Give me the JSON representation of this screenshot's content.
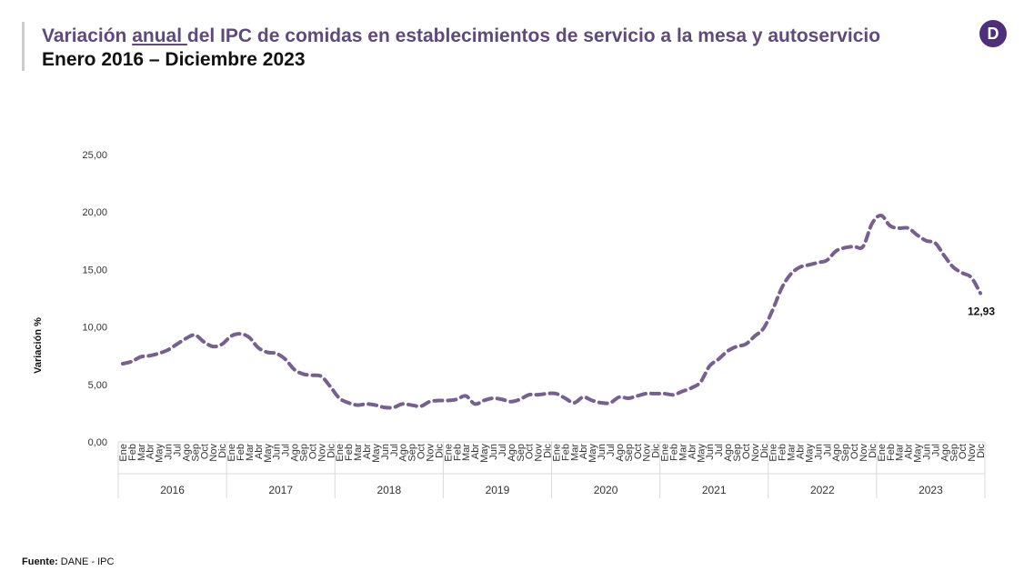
{
  "header": {
    "title_pre": "Variación ",
    "title_under": "anual ",
    "title_post": "del IPC de comidas en establecimientos de servicio a la mesa y autoservicio",
    "subtitle": "Enero 2016 – Diciembre 2023",
    "logo": "D"
  },
  "footer": {
    "source_label": "Fuente:",
    "source_text": " DANE - IPC"
  },
  "colors": {
    "line": "#76608f",
    "title": "#5e4a7e",
    "logo": "#4e2f7a"
  },
  "chart_data": {
    "type": "line",
    "ylabel": "Variación %",
    "ylim": [
      0,
      25
    ],
    "yticks": [
      "0,00",
      "5,00",
      "10,00",
      "15,00",
      "20,00",
      "25,00"
    ],
    "months": [
      "Ene",
      "Feb",
      "Mar",
      "Abr",
      "May",
      "Jun",
      "Jul",
      "Ago",
      "Sep",
      "Oct",
      "Nov",
      "Dic"
    ],
    "years": [
      "2016",
      "2017",
      "2018",
      "2019",
      "2020",
      "2021",
      "2022",
      "2023"
    ],
    "line_style": "dashed",
    "grid": false,
    "end_label": "12,93",
    "values": [
      6.8,
      7.0,
      7.4,
      7.5,
      7.7,
      8.0,
      8.5,
      9.0,
      9.3,
      8.7,
      8.3,
      8.5,
      9.2,
      9.4,
      9.1,
      8.2,
      7.8,
      7.7,
      7.2,
      6.3,
      5.9,
      5.8,
      5.7,
      4.8,
      3.8,
      3.4,
      3.2,
      3.3,
      3.2,
      3.0,
      3.0,
      3.3,
      3.2,
      3.1,
      3.5,
      3.6,
      3.6,
      3.7,
      4.0,
      3.3,
      3.6,
      3.8,
      3.7,
      3.5,
      3.7,
      4.1,
      4.1,
      4.2,
      4.2,
      3.8,
      3.4,
      3.9,
      3.6,
      3.4,
      3.4,
      3.9,
      3.8,
      4.0,
      4.2,
      4.2,
      4.2,
      4.1,
      4.4,
      4.7,
      5.2,
      6.6,
      7.2,
      7.9,
      8.3,
      8.5,
      9.2,
      9.9,
      11.5,
      13.4,
      14.6,
      15.2,
      15.4,
      15.6,
      15.8,
      16.6,
      16.9,
      17.0,
      17.0,
      19.0,
      19.7,
      18.8,
      18.6,
      18.6,
      18.0,
      17.5,
      17.3,
      16.2,
      15.2,
      14.7,
      14.3,
      12.93
    ]
  }
}
